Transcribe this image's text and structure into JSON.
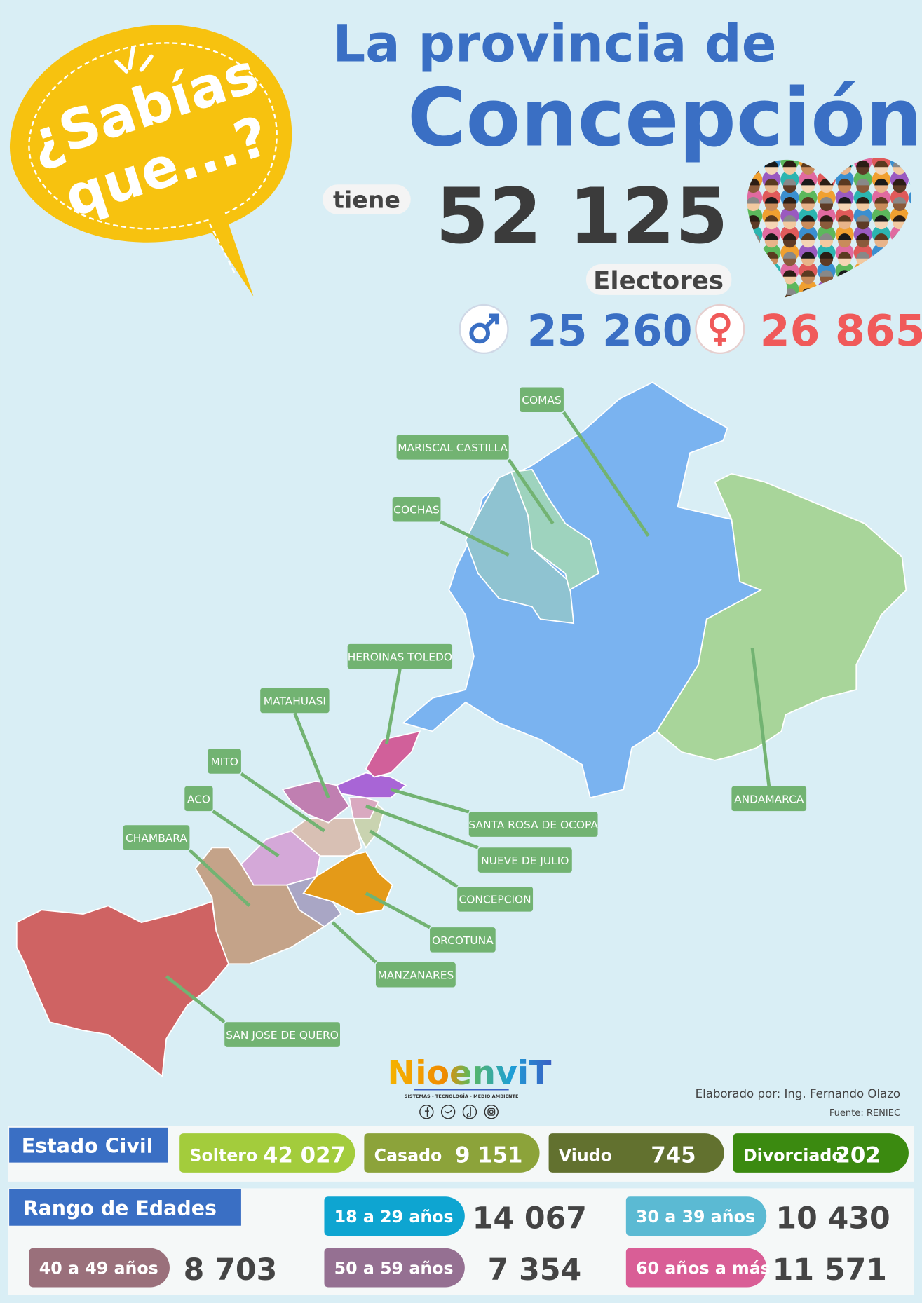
{
  "header": {
    "badge_line1": "¿Sabías",
    "badge_line2": "que...?",
    "title_line1": "La provincia de",
    "title_line2": "Concepción",
    "tiene": "tiene",
    "total_electores": "52 125",
    "electores": "Electores",
    "hombres": "25 260",
    "mujeres": "26 865"
  },
  "map": {
    "districts": [
      {
        "name": "COMAS",
        "color": "#7ab3f0"
      },
      {
        "name": "ANDAMARCA",
        "color": "#a8d59a"
      },
      {
        "name": "COCHAS",
        "color": "#8fc3d1"
      },
      {
        "name": "MARISCAL CASTILLA",
        "color": "#9ed3be"
      },
      {
        "name": "SAN JOSE DE QUERO",
        "color": "#cf6363"
      },
      {
        "name": "CHAMBARA",
        "color": "#c4a389"
      },
      {
        "name": "ACO",
        "color": "#d4a8d8"
      },
      {
        "name": "MANZANARES",
        "color": "#a9a6c5"
      },
      {
        "name": "MITO",
        "color": "#d8c0b4"
      },
      {
        "name": "ORCOTUNA",
        "color": "#e49a18"
      },
      {
        "name": "CONCEPCION",
        "color": "#c9d3b0"
      },
      {
        "name": "NUEVE DE JULIO",
        "color": "#d9a9c0"
      },
      {
        "name": "MATAHUASI",
        "color": "#c07fb1"
      },
      {
        "name": "SANTA ROSA DE OCOPA",
        "color": "#a865d6"
      },
      {
        "name": "HEROINAS TOLEDO",
        "color": "#d1609a"
      }
    ]
  },
  "credits": {
    "brand": "NioenviT",
    "tagline": "SISTEMAS - TECNOLOGÍA - MEDIO AMBIENTE",
    "author": "Elaborado por: Ing. Fernando Olazo",
    "source": "Fuente: RENIEC"
  },
  "estado_civil": {
    "title": "Estado Civil",
    "items": [
      {
        "label": "Soltero",
        "value": "42 027",
        "color": "#a3cc3c"
      },
      {
        "label": "Casado",
        "value": "9 151",
        "color": "#8ca33a"
      },
      {
        "label": "Viudo",
        "value": "745",
        "color": "#62712f"
      },
      {
        "label": "Divorciado",
        "value": "202",
        "color": "#3b8a10"
      }
    ]
  },
  "rango_edades": {
    "title": "Rango de Edades",
    "items": [
      {
        "label": "18 a 29 años",
        "value": "14 067",
        "color": "#0ea5d1"
      },
      {
        "label": "30 a 39 años",
        "value": "10 430",
        "color": "#5bbad3"
      },
      {
        "label": "40 a 49 años",
        "value": "8 703",
        "color": "#9a707b"
      },
      {
        "label": "50 a 59 años",
        "value": "7 354",
        "color": "#957092"
      },
      {
        "label": "60 años a más",
        "value": "11 571",
        "color": "#d95e96"
      }
    ]
  }
}
